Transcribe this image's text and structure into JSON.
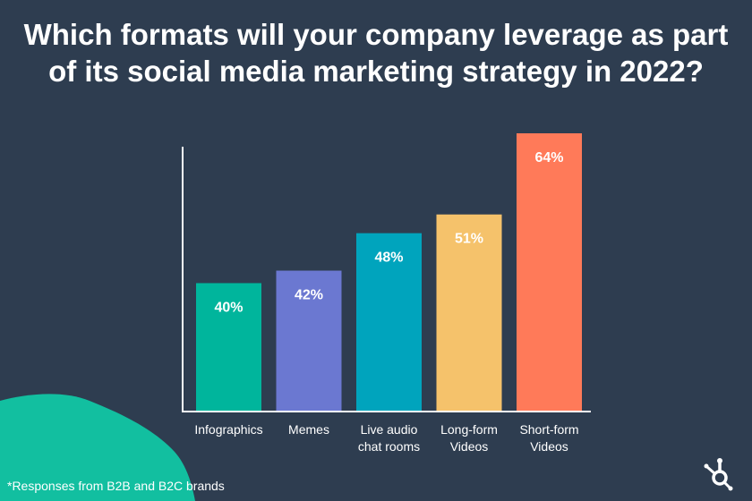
{
  "colors": {
    "background": "#2e3d50",
    "blob": "#12bfa0",
    "axis": "#ffffff"
  },
  "icons": {
    "logo": "hubspot-sprocket-icon"
  },
  "footnote": "*Responses from B2B and B2C brands",
  "chart_data": {
    "type": "bar",
    "title": "Which formats will your company leverage as part of its social media marketing strategy in 2022?",
    "categories": [
      [
        "Infographics"
      ],
      [
        "Memes"
      ],
      [
        "Live audio",
        "chat rooms"
      ],
      [
        "Long-form",
        "Videos"
      ],
      [
        "Short-form",
        "Videos"
      ]
    ],
    "values": [
      40,
      42,
      48,
      51,
      64
    ],
    "value_labels": [
      "40%",
      "42%",
      "48%",
      "51%",
      "64%"
    ],
    "colors": [
      "#00b59c",
      "#6b78d1",
      "#00a4bd",
      "#f5c26b",
      "#ff7a59"
    ],
    "value_label_colors": [
      "#ffffff",
      "#ffffff",
      "#ffffff",
      "#ffffff",
      "#ffffff"
    ],
    "ylim": [
      19.43,
      64
    ],
    "grid": false,
    "legend": "none"
  }
}
